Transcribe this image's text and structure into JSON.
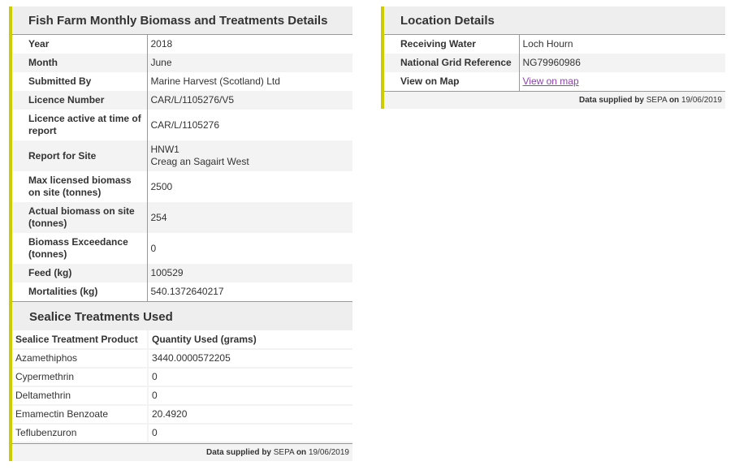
{
  "biomass": {
    "title": "Fish Farm Monthly Biomass and Treatments Details",
    "rows": [
      {
        "label": "Year",
        "value": "2018"
      },
      {
        "label": "Month",
        "value": "June"
      },
      {
        "label": "Submitted By",
        "value": "Marine Harvest (Scotland) Ltd"
      },
      {
        "label": "Licence Number",
        "value": "CAR/L/1105276/V5"
      },
      {
        "label": "Licence active at time of report",
        "value": "CAR/L/1105276"
      },
      {
        "label": "Report for Site",
        "value": "HNW1",
        "value2": "Creag an Sagairt West"
      },
      {
        "label": "Max licensed biomass on site (tonnes)",
        "value": "2500"
      },
      {
        "label": "Actual biomass on site (tonnes)",
        "value": "254"
      },
      {
        "label": "Biomass Exceedance (tonnes)",
        "value": "0"
      },
      {
        "label": "Feed (kg)",
        "value": "100529"
      },
      {
        "label": "Mortalities (kg)",
        "value": "540.1372640217"
      }
    ]
  },
  "sealice": {
    "title": "Sealice Treatments Used",
    "headers": [
      "Sealice Treatment Product",
      "Quantity Used (grams)"
    ],
    "rows": [
      [
        "Azamethiphos",
        "3440.0000572205"
      ],
      [
        "Cypermethrin",
        "0"
      ],
      [
        "Deltamethrin",
        "0"
      ],
      [
        "Emamectin Benzoate",
        "20.4920"
      ],
      [
        "Teflubenzuron",
        "0"
      ]
    ]
  },
  "footer": {
    "prefix": "Data supplied by",
    "source": "SEPA",
    "mid": "on",
    "date": "19/06/2019"
  },
  "location": {
    "title": "Location Details",
    "rows": [
      {
        "label": "Receiving Water",
        "value": "Loch Hourn"
      },
      {
        "label": "National Grid Reference",
        "value": "NG79960986"
      },
      {
        "label": "View on Map",
        "value": "View on map"
      }
    ]
  },
  "colors": {
    "accent": "#cccc00",
    "link": "#8e44ad"
  }
}
